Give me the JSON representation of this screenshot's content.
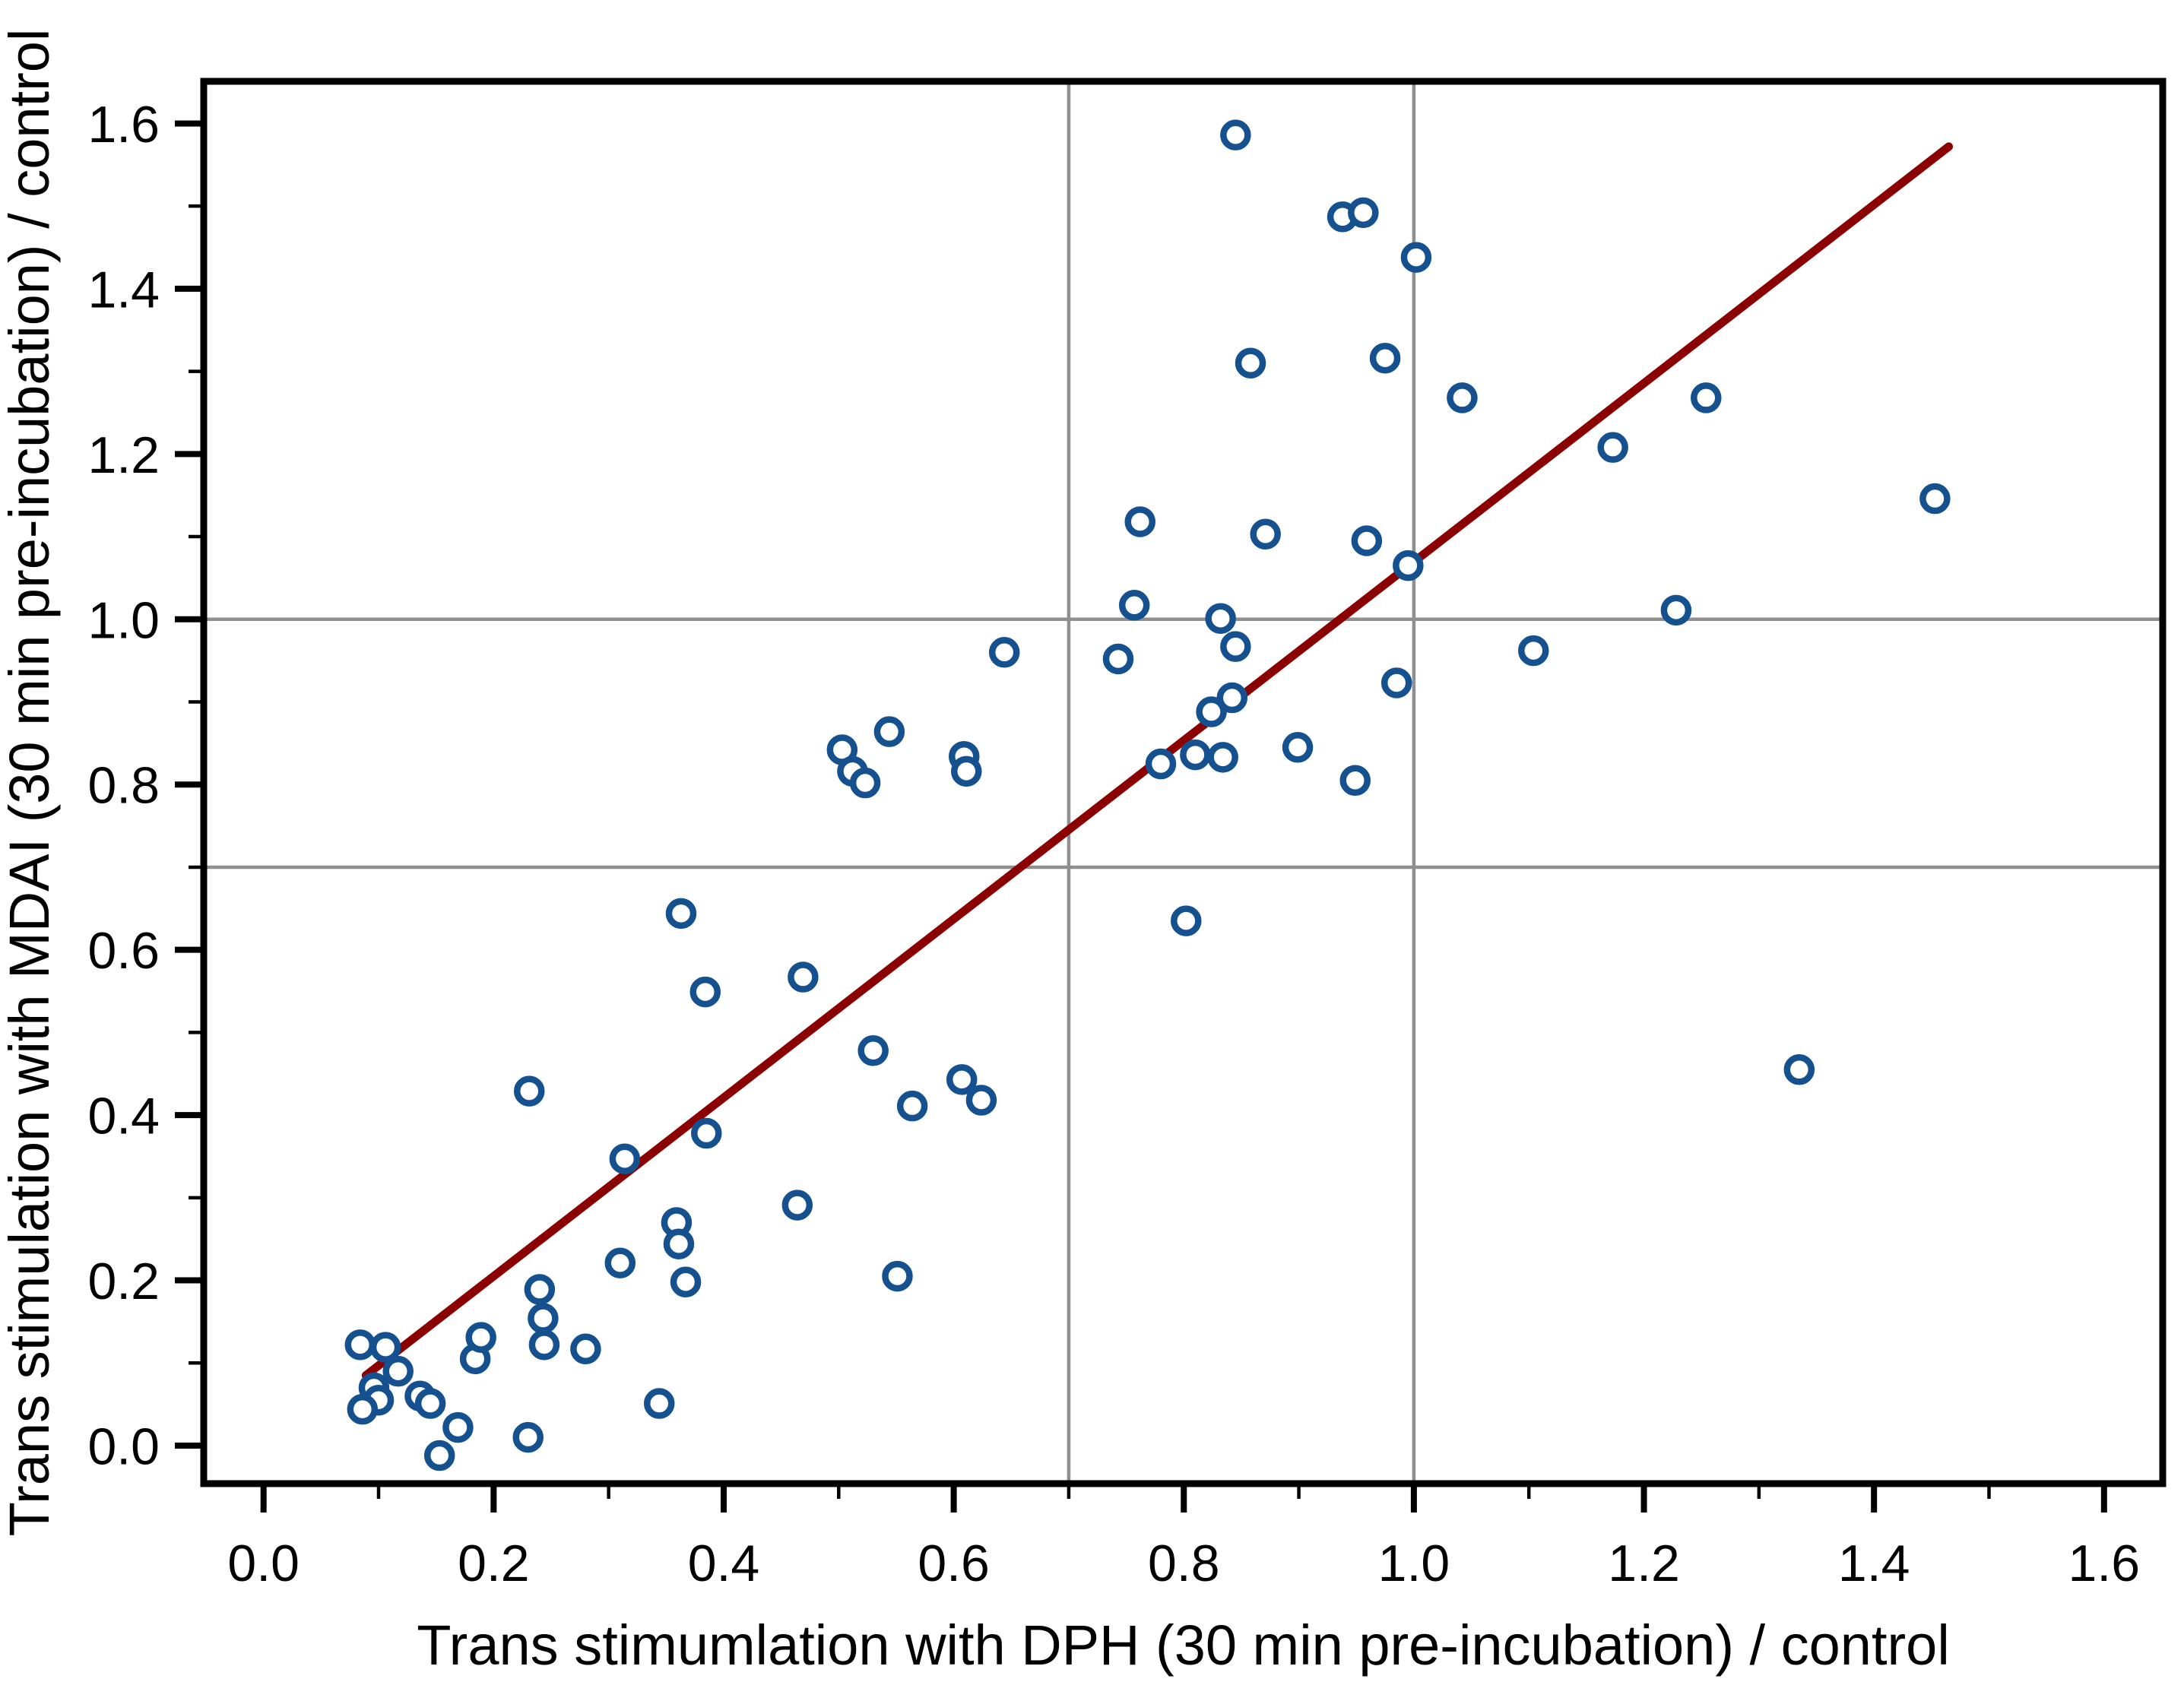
{
  "chart_data": {
    "type": "scatter",
    "title": "",
    "xlabel": "Trans stimumlation with DPH (30 min pre-incubation) / control",
    "ylabel": "Trans stimulation with MDAI (30 min pre-incubation) / control",
    "xlim": [
      -0.052,
      1.651
    ],
    "ylim": [
      -0.046,
      1.651
    ],
    "x_tick_values": [
      0.0,
      0.2,
      0.4,
      0.6,
      0.8,
      1.0,
      1.2,
      1.4,
      1.6
    ],
    "x_tick_labels": [
      "0.0",
      "0.2",
      "0.4",
      "0.6",
      "0.8",
      "1.0",
      "1.2",
      "1.4",
      "1.6"
    ],
    "y_tick_values": [
      0.0,
      0.2,
      0.4,
      0.6,
      0.8,
      1.0,
      1.2,
      1.4,
      1.6
    ],
    "y_tick_labels": [
      "0.0",
      "0.2",
      "0.4",
      "0.6",
      "0.8",
      "1.0",
      "1.2",
      "1.4",
      "1.6"
    ],
    "x_minor_ticks": [
      0.1,
      0.3,
      0.5,
      0.7,
      0.9,
      1.1,
      1.3,
      1.5
    ],
    "y_minor_ticks": [
      0.1,
      0.3,
      0.5,
      0.7,
      0.9,
      1.1,
      1.3,
      1.5
    ],
    "grid_x": [
      0.7,
      1.0
    ],
    "grid_y": [
      0.7,
      1.0
    ],
    "grid_on": true,
    "legend": null,
    "points": [
      [
        0.084,
        0.122
      ],
      [
        0.106,
        0.119
      ],
      [
        0.117,
        0.09
      ],
      [
        0.096,
        0.07
      ],
      [
        0.1,
        0.055
      ],
      [
        0.086,
        0.044
      ],
      [
        0.136,
        0.06
      ],
      [
        0.145,
        0.051
      ],
      [
        0.169,
        0.022
      ],
      [
        0.184,
        0.105
      ],
      [
        0.189,
        0.131
      ],
      [
        0.23,
        0.01
      ],
      [
        0.153,
        -0.012
      ],
      [
        0.24,
        0.189
      ],
      [
        0.243,
        0.154
      ],
      [
        0.244,
        0.122
      ],
      [
        0.28,
        0.117
      ],
      [
        0.344,
        0.051
      ],
      [
        0.31,
        0.221
      ],
      [
        0.359,
        0.27
      ],
      [
        0.361,
        0.244
      ],
      [
        0.367,
        0.198
      ],
      [
        0.314,
        0.347
      ],
      [
        0.385,
        0.378
      ],
      [
        0.231,
        0.429
      ],
      [
        0.363,
        0.644
      ],
      [
        0.384,
        0.549
      ],
      [
        0.464,
        0.291
      ],
      [
        0.469,
        0.567
      ],
      [
        0.53,
        0.478
      ],
      [
        0.551,
        0.205
      ],
      [
        0.564,
        0.411
      ],
      [
        0.607,
        0.443
      ],
      [
        0.624,
        0.418
      ],
      [
        0.503,
        0.842
      ],
      [
        0.512,
        0.816
      ],
      [
        0.523,
        0.802
      ],
      [
        0.544,
        0.864
      ],
      [
        0.609,
        0.834
      ],
      [
        0.611,
        0.816
      ],
      [
        0.644,
        0.96
      ],
      [
        0.743,
        0.952
      ],
      [
        0.757,
        1.017
      ],
      [
        0.762,
        1.118
      ],
      [
        0.78,
        0.825
      ],
      [
        0.81,
        0.836
      ],
      [
        0.834,
        0.833
      ],
      [
        0.802,
        0.635
      ],
      [
        0.824,
        0.888
      ],
      [
        0.842,
        0.905
      ],
      [
        0.845,
        0.967
      ],
      [
        0.832,
        1.001
      ],
      [
        0.871,
        1.103
      ],
      [
        0.899,
        0.845
      ],
      [
        0.949,
        0.805
      ],
      [
        0.959,
        1.095
      ],
      [
        0.985,
        0.923
      ],
      [
        0.995,
        1.065
      ],
      [
        1.104,
        0.962
      ],
      [
        0.845,
        1.586
      ],
      [
        0.938,
        1.487
      ],
      [
        0.956,
        1.492
      ],
      [
        1.002,
        1.438
      ],
      [
        0.858,
        1.31
      ],
      [
        0.975,
        1.316
      ],
      [
        1.042,
        1.268
      ],
      [
        1.173,
        1.208
      ],
      [
        1.254,
        1.268
      ],
      [
        1.228,
        1.011
      ],
      [
        1.453,
        1.146
      ],
      [
        1.335,
        0.455
      ]
    ],
    "regression_line": {
      "x1": 0.089,
      "y1": 0.085,
      "x2": 1.465,
      "y2": 1.572
    },
    "colors": {
      "marker": "#15518f",
      "marker_fill": "#ffffff",
      "line": "#8b0000",
      "grid": "#8f8f8f",
      "axis": "#000000"
    }
  }
}
